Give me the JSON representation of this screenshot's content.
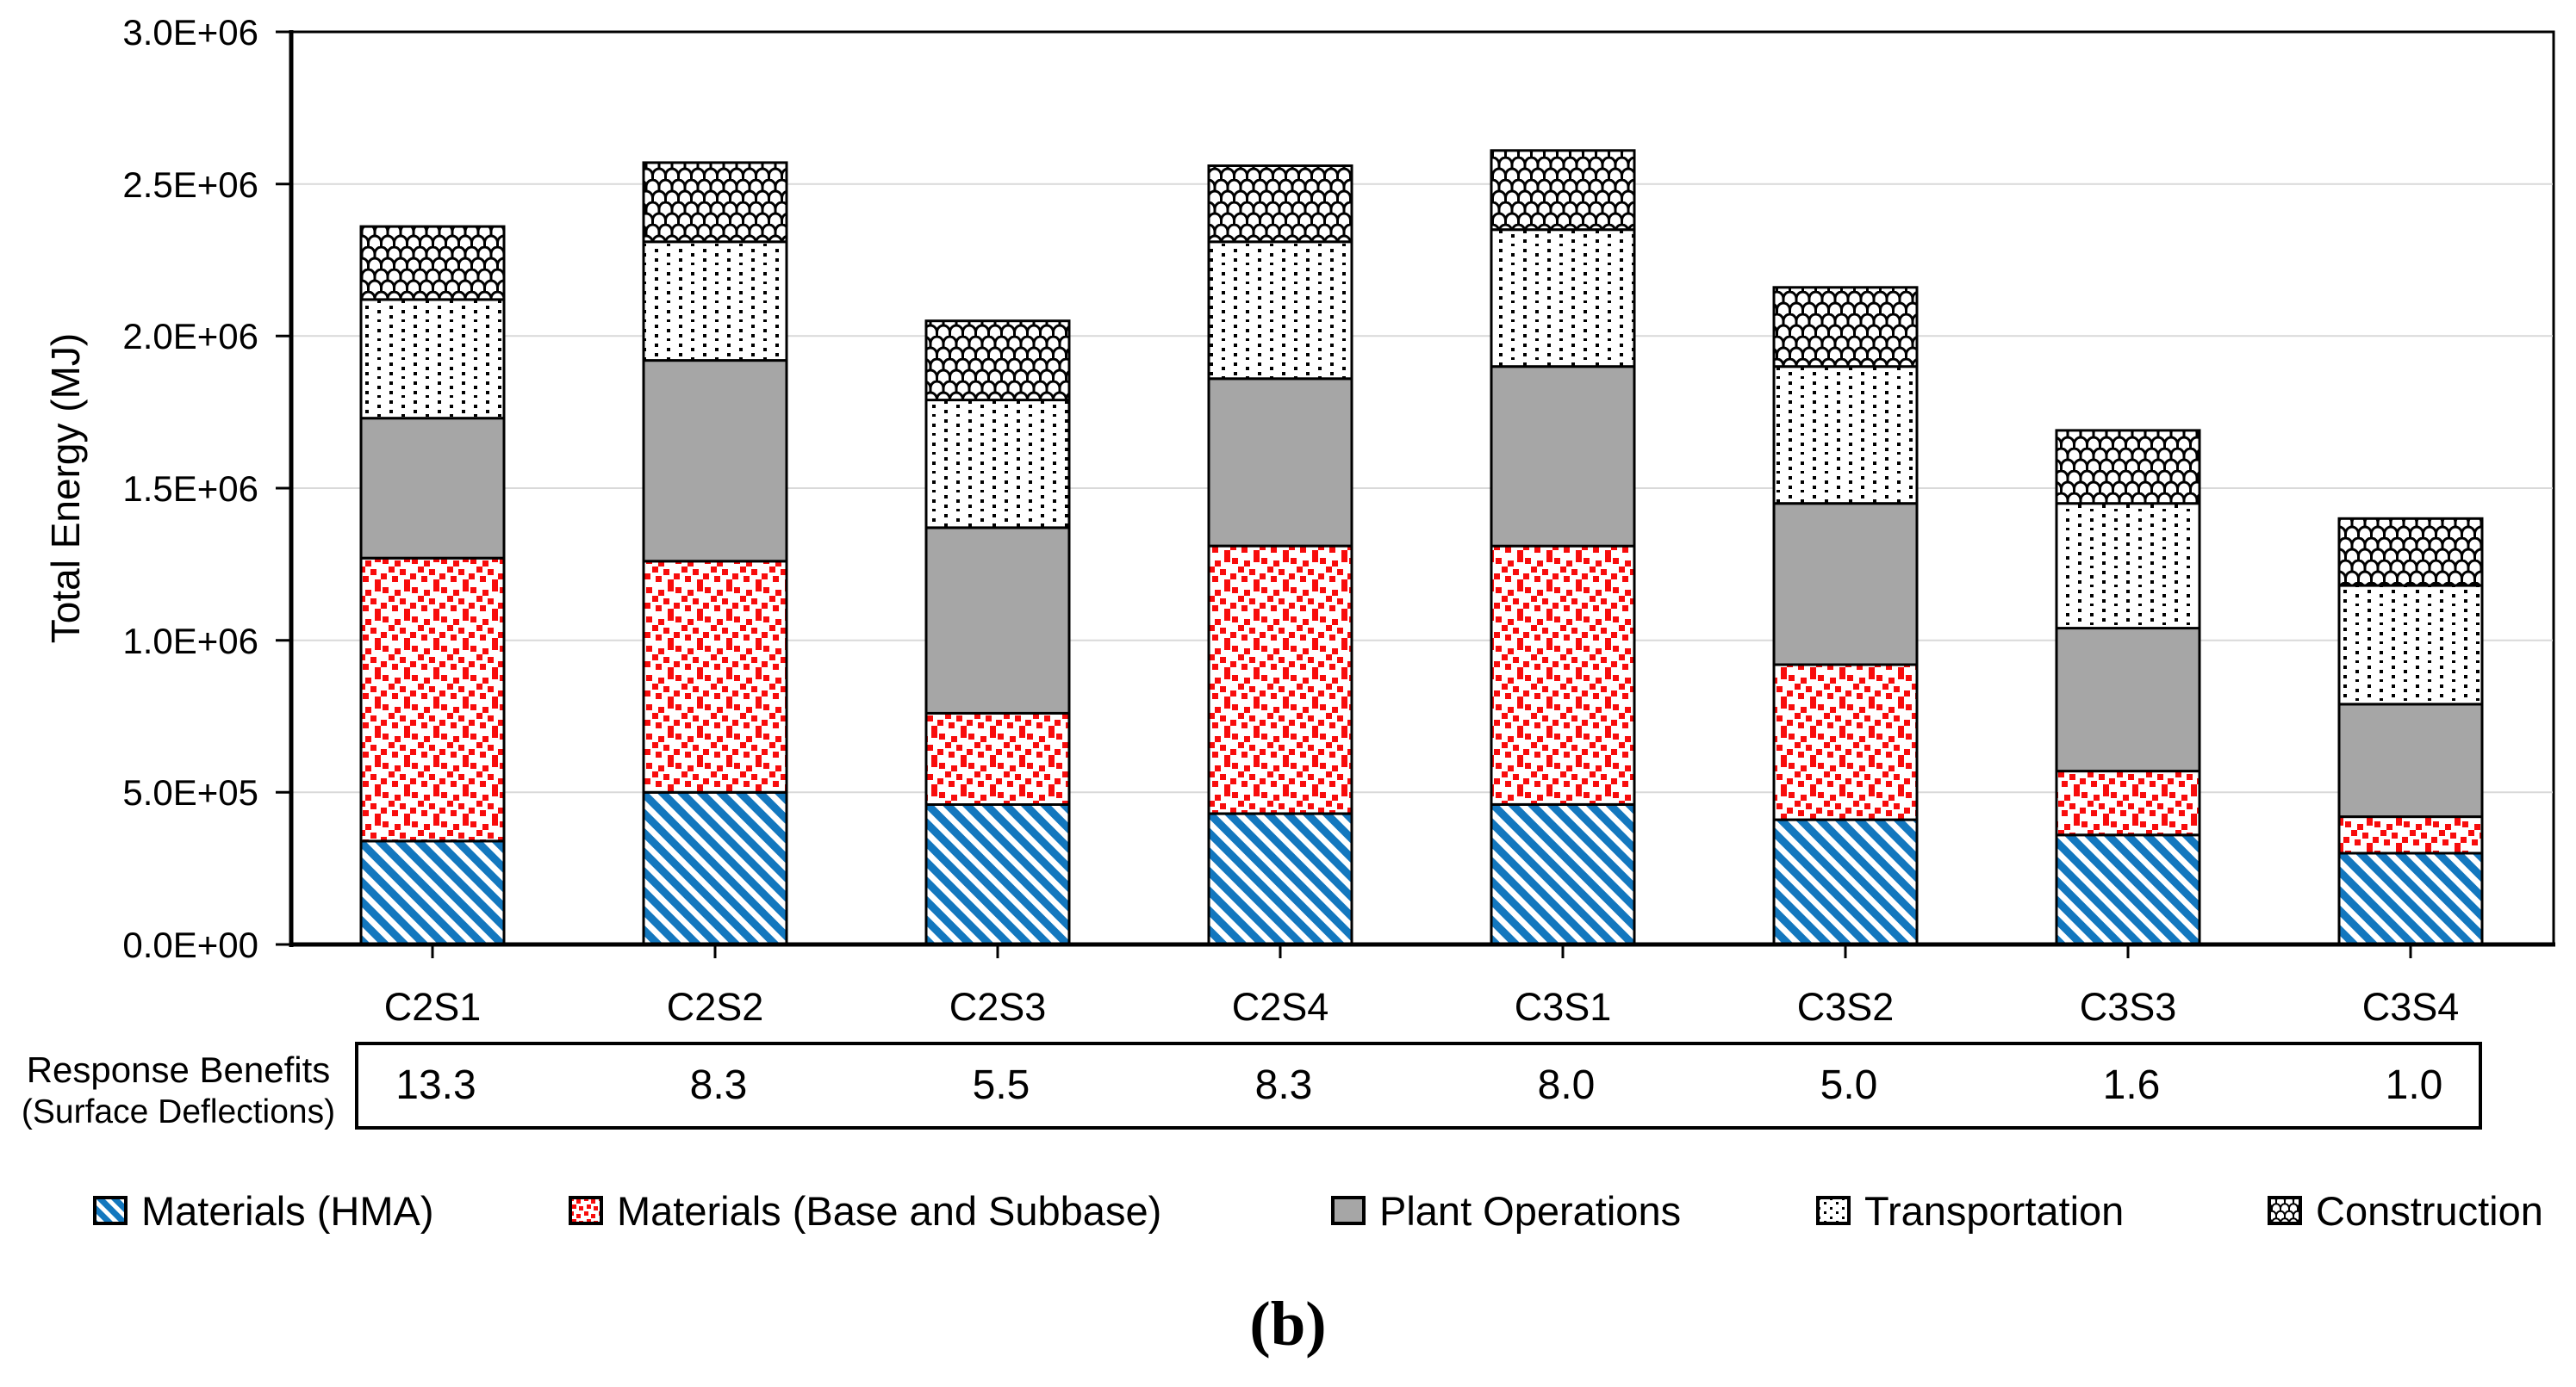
{
  "figure": {
    "caption": "(b)",
    "background": "#ffffff",
    "gridline_color": "#d9d9d9"
  },
  "chart_data": {
    "type": "bar",
    "stacked": true,
    "title": "",
    "xlabel": "",
    "ylabel": "Total Energy (MJ)",
    "ylim": [
      0,
      3000000
    ],
    "y_ticks": [
      "0.0E+00",
      "5.0E+05",
      "1.0E+06",
      "1.5E+06",
      "2.0E+06",
      "2.5E+06",
      "3.0E+06"
    ],
    "grid": "horizontal",
    "legend_position": "bottom",
    "categories": [
      "C2S1",
      "C2S2",
      "C2S3",
      "C2S4",
      "C3S1",
      "C3S2",
      "C3S3",
      "C3S4"
    ],
    "series": [
      {
        "name": "Materials (HMA)",
        "swatch": "blue-diagonal-stripes",
        "color": "#1377be",
        "values": [
          340000,
          500000,
          460000,
          430000,
          460000,
          410000,
          360000,
          300000
        ]
      },
      {
        "name": "Materials (Base and Subbase)",
        "swatch": "red-dots",
        "color": "#f80c0c",
        "values": [
          930000,
          760000,
          300000,
          880000,
          850000,
          510000,
          210000,
          120000
        ]
      },
      {
        "name": "Plant Operations",
        "swatch": "gray-solid",
        "color": "#a6a6a6",
        "values": [
          460000,
          660000,
          610000,
          550000,
          590000,
          530000,
          470000,
          370000
        ]
      },
      {
        "name": "Transportation",
        "swatch": "black-dots",
        "color": "#000000",
        "values": [
          390000,
          390000,
          420000,
          450000,
          450000,
          450000,
          410000,
          390000
        ]
      },
      {
        "name": "Construction",
        "swatch": "shingle-weave",
        "color": "#000000",
        "values": [
          240000,
          260000,
          260000,
          250000,
          260000,
          260000,
          240000,
          220000
        ]
      }
    ],
    "totals": [
      2360000,
      2570000,
      2050000,
      2560000,
      2610000,
      2160000,
      1690000,
      1400000
    ]
  },
  "response_table": {
    "label_line1": "Response Benefits",
    "label_line2": "(Surface Deflections)",
    "values": [
      "13.3",
      "8.3",
      "5.5",
      "8.3",
      "8.0",
      "5.0",
      "1.6",
      "1.0"
    ]
  }
}
